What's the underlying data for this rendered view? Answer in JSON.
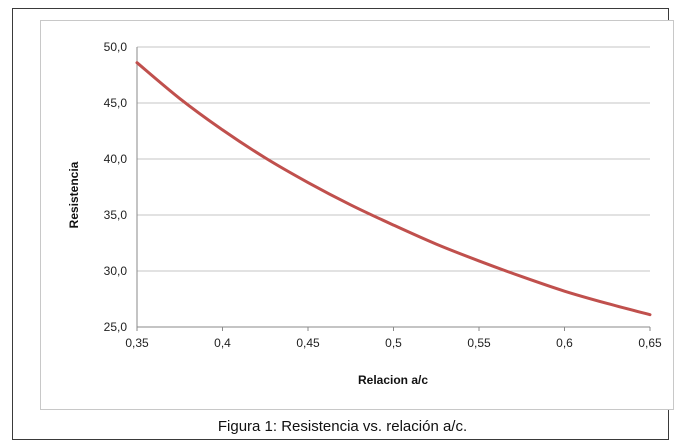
{
  "chart_data": {
    "type": "line",
    "xlabel": "Relacion a/c",
    "ylabel": "Resistencia",
    "ylim": [
      25.0,
      50.0
    ],
    "xlim": [
      0.35,
      0.65
    ],
    "grid": "horizontal",
    "y_ticks": [
      "25,0",
      "30,0",
      "35,0",
      "40,0",
      "45,0",
      "50,0"
    ],
    "y_tick_values": [
      25,
      30,
      35,
      40,
      45,
      50
    ],
    "x_ticks": [
      "0,35",
      "0,4",
      "0,45",
      "0,5",
      "0,55",
      "0,6",
      "0,65"
    ],
    "x_tick_values": [
      0.35,
      0.4,
      0.45,
      0.5,
      0.55,
      0.6,
      0.65
    ],
    "series": [
      {
        "color": "#c0504d",
        "x": [
          0.35,
          0.375,
          0.4,
          0.425,
          0.45,
          0.475,
          0.5,
          0.525,
          0.55,
          0.575,
          0.6,
          0.625,
          0.65
        ],
        "y": [
          48.6,
          45.4,
          42.6,
          40.1,
          37.9,
          35.9,
          34.1,
          32.4,
          30.9,
          29.5,
          28.2,
          27.1,
          26.1
        ]
      }
    ]
  },
  "caption": "Figura 1: Resistencia vs. relación a/c."
}
